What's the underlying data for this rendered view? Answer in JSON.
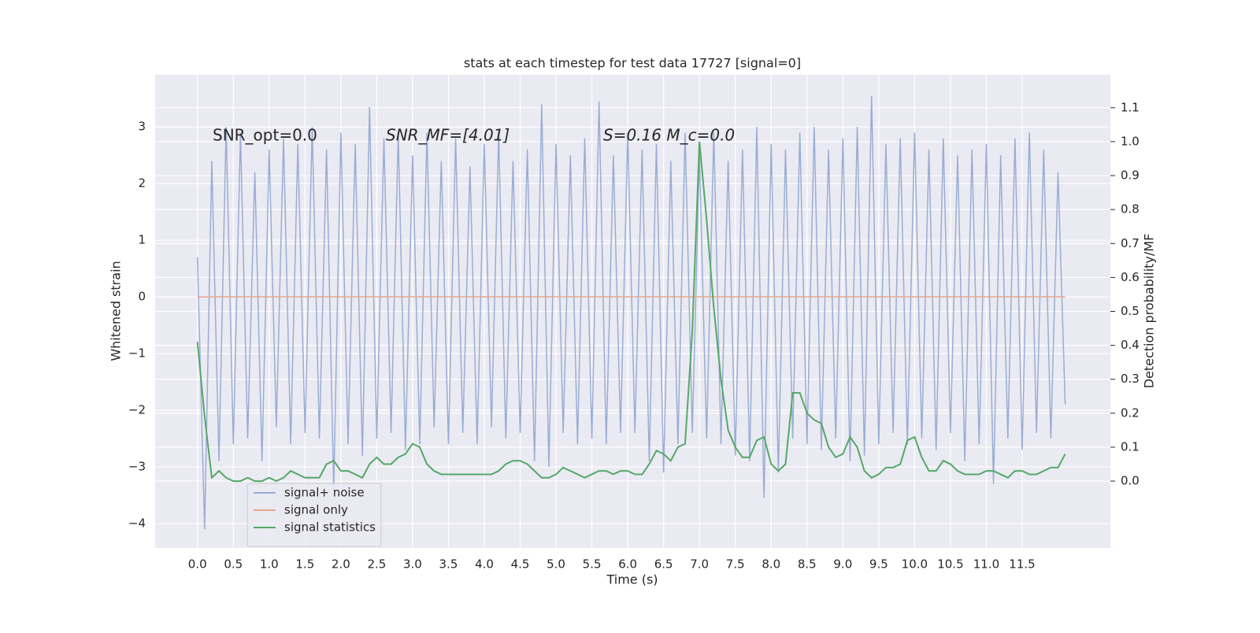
{
  "chart_data": {
    "type": "line",
    "title": "stats at each timestep for test data 17727 [signal=0]",
    "xlabel": "Time (s)",
    "ylabel": "Whitened strain",
    "y2label": "Detection probability/MF",
    "annotations": [
      "SNR_opt=0.0",
      "SNR_MF=[4.01]",
      "S=0.16   M_c=0.0"
    ],
    "grid": true,
    "legend": "lower left",
    "xlim": [
      -0.59,
      12.73
    ],
    "ylim": [
      -4.43,
      3.92
    ],
    "y2lim": [
      -0.197,
      1.197
    ],
    "xticks": [
      {
        "value": 0,
        "label": "0.0"
      },
      0.5,
      {
        "value": 1,
        "label": "1.0"
      },
      1.5,
      {
        "value": 2,
        "label": "2.0"
      },
      2.5,
      {
        "value": 3,
        "label": "3.0"
      },
      3.5,
      {
        "value": 4,
        "label": "4.0"
      },
      4.5,
      {
        "value": 5,
        "label": "5.0"
      },
      5.5,
      {
        "value": 6,
        "label": "6.0"
      },
      6.5,
      {
        "value": 7,
        "label": "7.0"
      },
      7.5,
      {
        "value": 8,
        "label": "8.0"
      },
      8.5,
      {
        "value": 9,
        "label": "9.0"
      },
      9.5,
      {
        "value": 10,
        "label": "10.0"
      },
      10.5,
      {
        "value": 11,
        "label": "11.0"
      },
      11.5
    ],
    "yticks": [
      {
        "value": -4,
        "label": "−4"
      },
      {
        "value": -3,
        "label": "−3"
      },
      {
        "value": -2,
        "label": "−2"
      },
      {
        "value": -1,
        "label": "−1"
      },
      0,
      1,
      2,
      3
    ],
    "y2ticks": [
      {
        "value": 0,
        "label": "0.0"
      },
      0.1,
      0.2,
      0.3,
      0.4,
      0.5,
      0.6,
      0.7,
      0.8,
      0.9,
      {
        "value": 1,
        "label": "1.0"
      },
      1.1
    ],
    "x": [
      0,
      0.1,
      0.2,
      0.3,
      0.4,
      0.5,
      0.6,
      0.7,
      0.8,
      0.9,
      1,
      1.1,
      1.2,
      1.3,
      1.4,
      1.5,
      1.6,
      1.7,
      1.8,
      1.9,
      2,
      2.1,
      2.2,
      2.3,
      2.4,
      2.5,
      2.6,
      2.7,
      2.8,
      2.9,
      3,
      3.1,
      3.2,
      3.3,
      3.4,
      3.5,
      3.6,
      3.7,
      3.8,
      3.9,
      4,
      4.1,
      4.2,
      4.3,
      4.4,
      4.5,
      4.6,
      4.7,
      4.8,
      4.9,
      5,
      5.1,
      5.2,
      5.3,
      5.4,
      5.5,
      5.6,
      5.7,
      5.8,
      5.9,
      6,
      6.1,
      6.2,
      6.3,
      6.4,
      6.5,
      6.6,
      6.7,
      6.8,
      6.9,
      7,
      7.1,
      7.2,
      7.3,
      7.4,
      7.5,
      7.6,
      7.7,
      7.8,
      7.9,
      8,
      8.1,
      8.2,
      8.3,
      8.4,
      8.5,
      8.6,
      8.7,
      8.8,
      8.9,
      9,
      9.1,
      9.2,
      9.3,
      9.4,
      9.5,
      9.6,
      9.7,
      9.8,
      9.9,
      10,
      10.1,
      10.2,
      10.3,
      10.4,
      10.5,
      10.6,
      10.7,
      10.8,
      10.9,
      11,
      11.1,
      11.2,
      11.3,
      11.4,
      11.5,
      11.6,
      11.7,
      11.8,
      11.9,
      12,
      12.1
    ],
    "series": [
      {
        "name": "signal+ noise",
        "color": "#9aadd3",
        "values": [
          0.7,
          -4.1,
          2.4,
          -2.9,
          3.0,
          -2.6,
          2.9,
          -2.5,
          2.2,
          -2.9,
          2.6,
          -2.3,
          2.8,
          -2.6,
          2.7,
          -2.4,
          3.0,
          -2.5,
          2.6,
          -3.4,
          2.9,
          -2.6,
          2.7,
          -2.8,
          3.35,
          -2.5,
          2.8,
          -2.4,
          2.9,
          -2.7,
          2.5,
          -2.6,
          2.9,
          -2.3,
          2.4,
          -2.6,
          2.8,
          -2.4,
          2.3,
          -2.6,
          2.7,
          -2.3,
          2.9,
          -2.5,
          2.4,
          -2.4,
          2.6,
          -2.9,
          3.4,
          -3.0,
          2.7,
          -2.4,
          2.5,
          -2.6,
          2.8,
          -2.5,
          3.45,
          -2.6,
          2.5,
          -2.4,
          2.9,
          -2.4,
          2.6,
          -2.9,
          2.7,
          -3.1,
          2.4,
          -2.6,
          2.9,
          -2.4,
          2.5,
          -2.5,
          2.9,
          -2.6,
          2.4,
          -2.8,
          2.6,
          -2.9,
          3.0,
          -3.55,
          2.7,
          -3.1,
          2.6,
          -2.5,
          2.9,
          -2.6,
          3.0,
          -2.7,
          2.6,
          -2.5,
          2.8,
          -2.9,
          3.0,
          -2.8,
          3.55,
          -2.6,
          2.7,
          -2.4,
          2.8,
          -2.6,
          2.9,
          -2.5,
          2.6,
          -2.7,
          2.8,
          -2.4,
          2.5,
          -2.9,
          2.6,
          -2.6,
          2.7,
          -3.3,
          2.5,
          -2.5,
          2.8,
          -2.7,
          2.9,
          -2.4,
          2.6,
          -2.5,
          2.2,
          -1.9
        ]
      },
      {
        "name": "signal only",
        "color": "#e8a88c",
        "values": [
          0,
          0,
          0,
          0,
          0,
          0,
          0,
          0,
          0,
          0,
          0,
          0,
          0,
          0,
          0,
          0,
          0,
          0,
          0,
          0,
          0,
          0,
          0,
          0,
          0,
          0,
          0,
          0,
          0,
          0,
          0,
          0,
          0,
          0,
          0,
          0,
          0,
          0,
          0,
          0,
          0,
          0,
          0,
          0,
          0,
          0,
          0,
          0,
          0,
          0,
          0,
          0,
          0,
          0,
          0,
          0,
          0,
          0,
          0,
          0,
          0,
          0,
          0,
          0,
          0,
          0,
          0,
          0,
          0,
          0,
          0,
          0,
          0,
          0,
          0,
          0,
          0,
          0,
          0,
          0,
          0,
          0,
          0,
          0,
          0,
          0,
          0,
          0,
          0,
          0,
          0,
          0,
          0,
          0,
          0,
          0,
          0,
          0,
          0,
          0,
          0,
          0,
          0,
          0,
          0,
          0,
          0,
          0,
          0,
          0,
          0,
          0,
          0,
          0,
          0,
          0,
          0,
          0,
          0,
          0,
          0,
          0
        ]
      },
      {
        "name": "signal statistics",
        "color": "#55a868",
        "axis": "y2",
        "values": [
          0.41,
          0.19,
          0.01,
          0.03,
          0.01,
          0.0,
          0.0,
          0.01,
          0.0,
          0.0,
          0.01,
          0.0,
          0.01,
          0.03,
          0.02,
          0.01,
          0.01,
          0.01,
          0.05,
          0.06,
          0.03,
          0.03,
          0.02,
          0.01,
          0.05,
          0.07,
          0.05,
          0.05,
          0.07,
          0.08,
          0.11,
          0.1,
          0.05,
          0.03,
          0.02,
          0.02,
          0.02,
          0.02,
          0.02,
          0.02,
          0.02,
          0.02,
          0.03,
          0.05,
          0.06,
          0.06,
          0.05,
          0.03,
          0.01,
          0.01,
          0.02,
          0.04,
          0.03,
          0.02,
          0.01,
          0.02,
          0.03,
          0.03,
          0.02,
          0.03,
          0.03,
          0.02,
          0.02,
          0.05,
          0.09,
          0.08,
          0.06,
          0.1,
          0.11,
          0.44,
          1.0,
          0.77,
          0.51,
          0.3,
          0.15,
          0.1,
          0.07,
          0.07,
          0.12,
          0.13,
          0.05,
          0.03,
          0.05,
          0.26,
          0.26,
          0.2,
          0.18,
          0.17,
          0.1,
          0.07,
          0.08,
          0.13,
          0.1,
          0.03,
          0.01,
          0.02,
          0.04,
          0.04,
          0.05,
          0.12,
          0.13,
          0.07,
          0.03,
          0.03,
          0.06,
          0.05,
          0.03,
          0.02,
          0.02,
          0.02,
          0.03,
          0.03,
          0.02,
          0.01,
          0.03,
          0.03,
          0.02,
          0.02,
          0.03,
          0.04,
          0.04,
          0.08
        ]
      }
    ]
  }
}
